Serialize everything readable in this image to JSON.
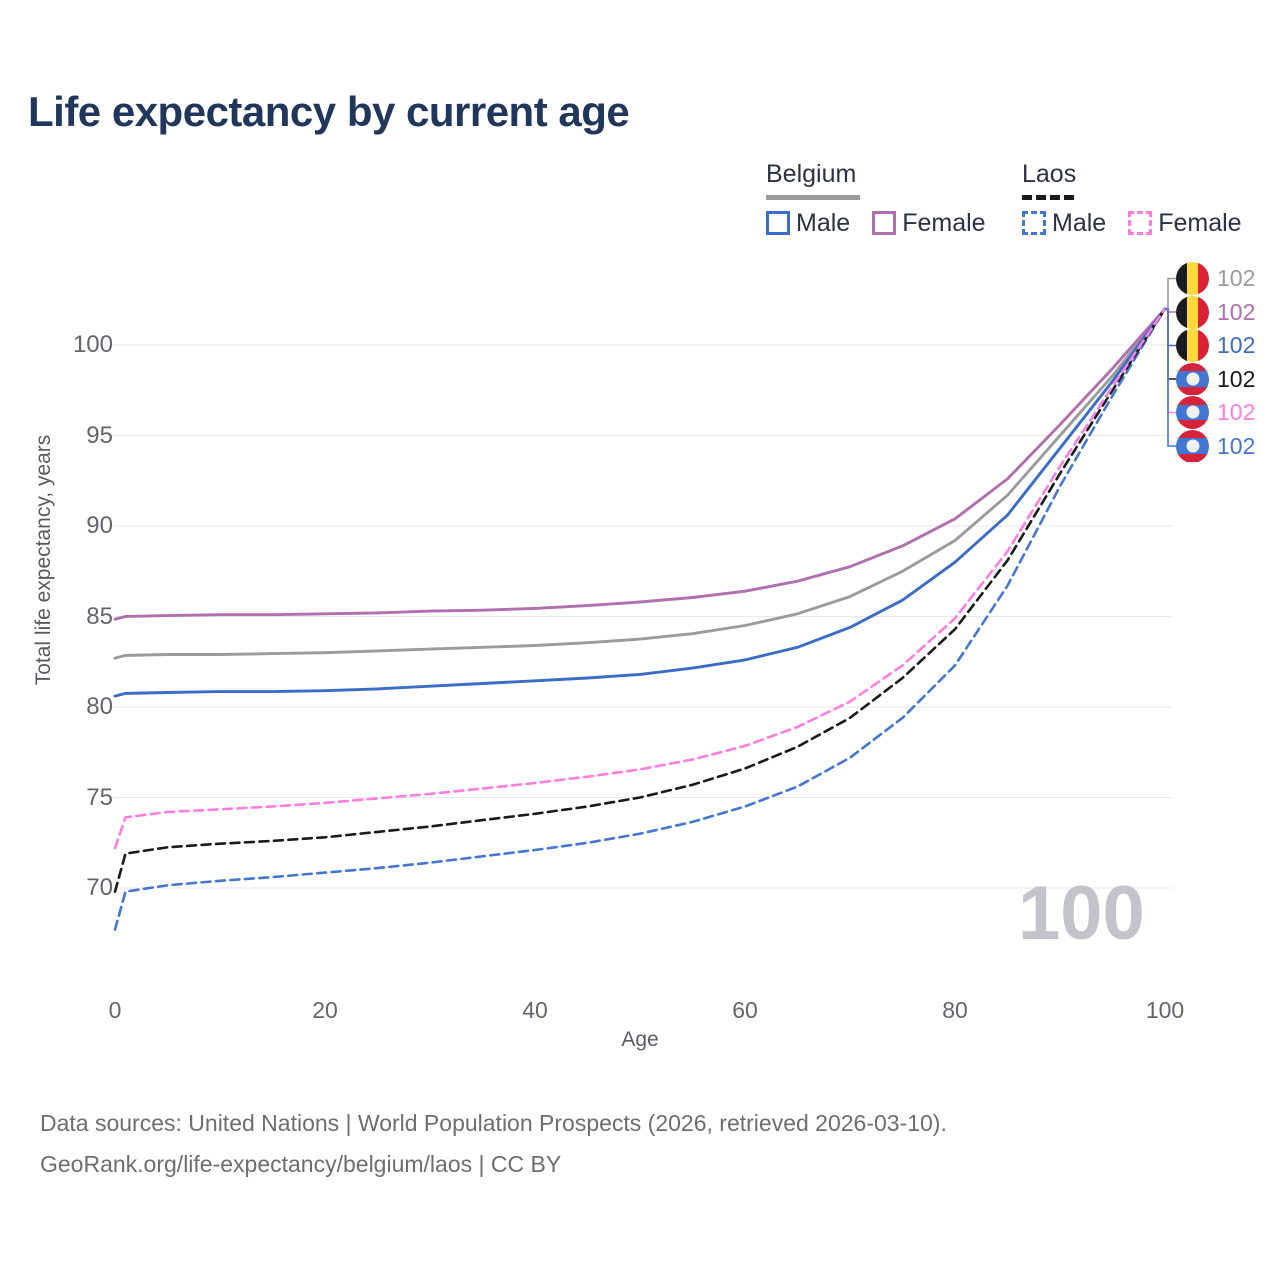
{
  "title": "Life expectancy by current age",
  "legend": {
    "belgium": {
      "label": "Belgium",
      "male": "Male",
      "female": "Female"
    },
    "laos": {
      "label": "Laos",
      "male": "Male",
      "female": "Female"
    }
  },
  "watermark": "100",
  "footer": {
    "line1": "Data sources: United Nations | World Population Prospects (2026, retrieved 2026-03-10).",
    "line2": "GeoRank.org/life-expectancy/belgium/laos | CC BY"
  },
  "colors": {
    "title_text": "#21365b",
    "axis_text": "#63656c",
    "legend_text": "#2b3245",
    "grid": "#e9e9ec",
    "belgium_overall": "#9b9b9b",
    "belgium_female": "#b06fae",
    "belgium_male": "#3b6cc7",
    "laos_overall": "#1a1a1a",
    "laos_female": "#ff7de0",
    "laos_male": "#4477d1",
    "watermark": "#c2c4c9",
    "footer_text": "#6e6e6e"
  },
  "end_labels": [
    {
      "flag": "belgium",
      "series": "Belgium",
      "value": "102",
      "color": "#9b9ba1"
    },
    {
      "flag": "belgium",
      "series": "Belgium Female",
      "value": "102",
      "color": "#b06fae"
    },
    {
      "flag": "belgium",
      "series": "Belgium Male",
      "value": "102",
      "color": "#3b6cc7"
    },
    {
      "flag": "laos",
      "series": "Laos",
      "value": "102",
      "color": "#1a1a1a"
    },
    {
      "flag": "laos",
      "series": "Laos Female",
      "value": "102",
      "color": "#ff7de0"
    },
    {
      "flag": "laos",
      "series": "Laos Male",
      "value": "102",
      "color": "#4477d1"
    }
  ],
  "chart_data": {
    "type": "line",
    "title": "Life expectancy by current age",
    "xlabel": "Age",
    "ylabel": "Total life expectancy, years",
    "xlim": [
      0,
      100
    ],
    "ylim": [
      67,
      103
    ],
    "xticks": [
      0,
      20,
      40,
      60,
      80,
      100
    ],
    "yticks": [
      70,
      75,
      80,
      85,
      90,
      95,
      100
    ],
    "grid": true,
    "legend_position": "top-right",
    "x": [
      0,
      1,
      5,
      10,
      15,
      20,
      25,
      30,
      35,
      40,
      45,
      50,
      55,
      60,
      65,
      70,
      75,
      80,
      85,
      90,
      95,
      100
    ],
    "series": [
      {
        "name": "Belgium",
        "country": "Belgium",
        "sex": "both",
        "style": "solid",
        "color": "#9b9b9b",
        "values": [
          82.7,
          82.85,
          82.9,
          82.9,
          82.95,
          83.0,
          83.1,
          83.2,
          83.3,
          83.4,
          83.55,
          83.75,
          84.05,
          84.5,
          85.15,
          86.1,
          87.5,
          89.2,
          91.7,
          95.0,
          98.3,
          102
        ]
      },
      {
        "name": "Belgium Female",
        "country": "Belgium",
        "sex": "female",
        "style": "solid",
        "color": "#b06fae",
        "values": [
          84.85,
          85.0,
          85.05,
          85.1,
          85.1,
          85.15,
          85.2,
          85.3,
          85.35,
          85.45,
          85.6,
          85.8,
          86.05,
          86.4,
          86.95,
          87.75,
          88.9,
          90.4,
          92.6,
          95.6,
          98.7,
          102
        ]
      },
      {
        "name": "Belgium Male",
        "country": "Belgium",
        "sex": "male",
        "style": "solid",
        "color": "#3b6cc7",
        "values": [
          80.6,
          80.75,
          80.8,
          80.85,
          80.85,
          80.9,
          81.0,
          81.15,
          81.3,
          81.45,
          81.6,
          81.8,
          82.15,
          82.6,
          83.3,
          84.4,
          85.9,
          88.0,
          90.6,
          94.3,
          98.0,
          102
        ]
      },
      {
        "name": "Laos Male",
        "country": "Laos",
        "sex": "male",
        "style": "dashed",
        "color": "#4477d1",
        "values": [
          67.7,
          69.8,
          70.15,
          70.4,
          70.6,
          70.85,
          71.1,
          71.4,
          71.75,
          72.1,
          72.5,
          73.0,
          73.65,
          74.5,
          75.6,
          77.2,
          79.4,
          82.3,
          86.7,
          92.2,
          97.2,
          102
        ]
      },
      {
        "name": "Laos",
        "country": "Laos",
        "sex": "both",
        "style": "dashed",
        "color": "#1a1a1a",
        "values": [
          69.8,
          71.9,
          72.25,
          72.45,
          72.6,
          72.8,
          73.1,
          73.4,
          73.75,
          74.1,
          74.5,
          75.0,
          75.7,
          76.6,
          77.8,
          79.4,
          81.6,
          84.3,
          88.1,
          92.9,
          97.5,
          102
        ]
      },
      {
        "name": "Laos Female",
        "country": "Laos",
        "sex": "female",
        "style": "dashed",
        "color": "#ff7de0",
        "values": [
          72.2,
          73.9,
          74.2,
          74.35,
          74.5,
          74.7,
          74.95,
          75.2,
          75.5,
          75.8,
          76.15,
          76.55,
          77.1,
          77.85,
          78.9,
          80.3,
          82.3,
          84.9,
          88.6,
          93.3,
          97.7,
          102
        ]
      }
    ]
  }
}
